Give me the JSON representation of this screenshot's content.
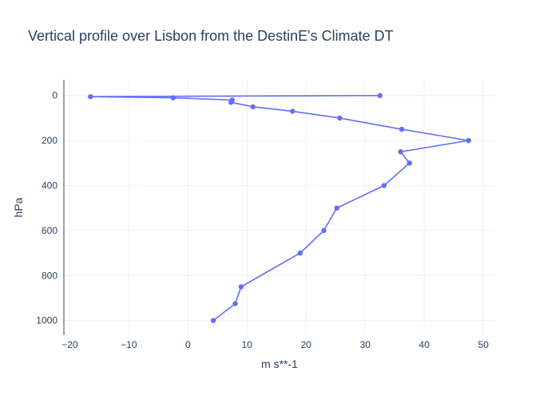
{
  "chart_data": {
    "type": "line",
    "title": "Vertical profile over Lisbon from the DestinE's Climate DT",
    "xlabel": "m s**-1",
    "ylabel": "hPa",
    "xlim": [
      -21,
      52
    ],
    "ylim": [
      1065,
      -70
    ],
    "y_reversed": true,
    "grid": true,
    "x_ticks": [
      -20,
      -10,
      0,
      10,
      20,
      30,
      40,
      50
    ],
    "x_tick_labels": [
      "−20",
      "−10",
      "0",
      "10",
      "20",
      "30",
      "40",
      "50"
    ],
    "y_ticks": [
      0,
      200,
      400,
      600,
      800,
      1000
    ],
    "y_tick_labels": [
      "0",
      "200",
      "400",
      "600",
      "800",
      "1000"
    ],
    "series": [
      {
        "color": "#636efa",
        "mode": "lines+markers",
        "x": [
          32.5,
          -16.5,
          -2.5,
          7.5,
          7.3,
          11,
          17.7,
          25.7,
          36.2,
          47.5,
          36,
          37.5,
          33.2,
          25.2,
          23,
          19,
          9,
          8,
          4.3
        ],
        "y": [
          0,
          5,
          10,
          20,
          30,
          50,
          70,
          100,
          150,
          200,
          250,
          300,
          400,
          500,
          600,
          700,
          850,
          925,
          1000
        ]
      }
    ]
  }
}
